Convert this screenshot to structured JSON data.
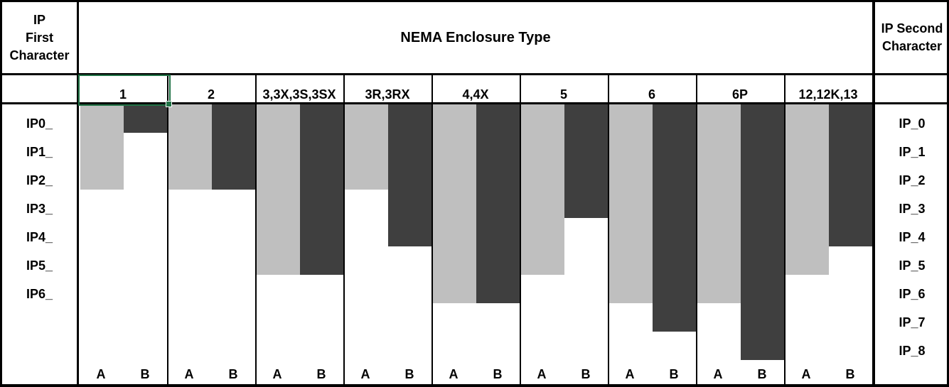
{
  "header": {
    "left_lines": [
      "IP",
      "First",
      "Character"
    ],
    "center": "NEMA Enclosure Type",
    "right_lines": [
      "IP Second",
      "Character"
    ]
  },
  "left_axis": [
    "IP0_",
    "IP1_",
    "IP2_",
    "IP3_",
    "IP4_",
    "IP5_",
    "IP6_"
  ],
  "right_axis": [
    "IP_0",
    "IP_1",
    "IP_2",
    "IP_3",
    "IP_4",
    "IP_5",
    "IP_6",
    "IP_7",
    "IP_8"
  ],
  "bottom_labels": [
    "A",
    "B"
  ],
  "selection": {
    "selected_header_cell": "1",
    "border_color": "#217346"
  },
  "colors": {
    "bar_a": "#BFBFBF",
    "bar_b": "#3F3F3F",
    "grid": "#000000",
    "background": "#FFFFFF"
  },
  "chart_data": {
    "type": "bar",
    "title": "NEMA Enclosure Type",
    "orientation": "vertical-downward",
    "left_axis_title": "IP First Character",
    "right_axis_title": "IP Second Character",
    "left_axis_rows": 7,
    "right_axis_rows": 9,
    "grid": "off",
    "categories": [
      "1",
      "2",
      "3,3X,3S,3SX",
      "3R,3RX",
      "4,4X",
      "5",
      "6",
      "6P",
      "12,12K,13"
    ],
    "series": [
      {
        "name": "A",
        "meaning": "IP first character depth reached",
        "values": [
          2,
          2,
          5,
          2,
          6,
          5,
          6,
          6,
          5
        ]
      },
      {
        "name": "B",
        "meaning": "IP second character depth reached",
        "values": [
          0,
          2,
          5,
          4,
          6,
          3,
          7,
          8,
          4
        ]
      }
    ],
    "columns": [
      {
        "nema": "1",
        "ip_first": 2,
        "ip_second": 0,
        "equivalent_ip": "IP20"
      },
      {
        "nema": "2",
        "ip_first": 2,
        "ip_second": 2,
        "equivalent_ip": "IP22"
      },
      {
        "nema": "3,3X,3S,3SX",
        "ip_first": 5,
        "ip_second": 5,
        "equivalent_ip": "IP55"
      },
      {
        "nema": "3R,3RX",
        "ip_first": 2,
        "ip_second": 4,
        "equivalent_ip": "IP24"
      },
      {
        "nema": "4,4X",
        "ip_first": 6,
        "ip_second": 6,
        "equivalent_ip": "IP66"
      },
      {
        "nema": "5",
        "ip_first": 5,
        "ip_second": 3,
        "equivalent_ip": "IP53"
      },
      {
        "nema": "6",
        "ip_first": 6,
        "ip_second": 7,
        "equivalent_ip": "IP67"
      },
      {
        "nema": "6P",
        "ip_first": 6,
        "ip_second": 8,
        "equivalent_ip": "IP68"
      },
      {
        "nema": "12,12K,13",
        "ip_first": 5,
        "ip_second": 4,
        "equivalent_ip": "IP54"
      }
    ]
  }
}
